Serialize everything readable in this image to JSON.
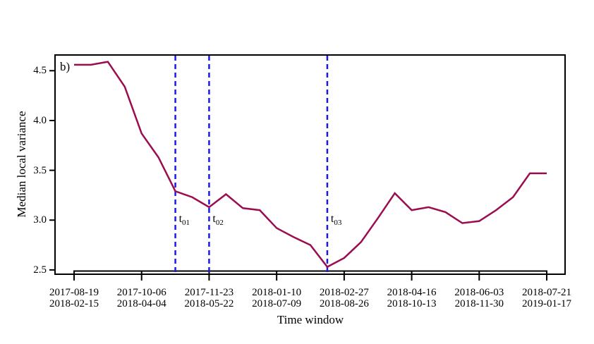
{
  "figure": {
    "panel_label": "b)",
    "background": "#ffffff",
    "text_color": "#000000"
  },
  "chart_data": {
    "type": "line",
    "title": "",
    "xlabel": "Time window",
    "ylabel": "Median local variance",
    "ylim": [
      2.43,
      4.65
    ],
    "grid": false,
    "legend": "none",
    "axis_color": "#000000",
    "y_tick_labels": [
      "4.5",
      "4.0",
      "3.5",
      "3.0",
      "2.5"
    ],
    "x_tick_point_indices": [
      0,
      4,
      8,
      12,
      16,
      20,
      24,
      28
    ],
    "x_tick_labels": [
      {
        "line1": "2017-08-19",
        "line2": "2018-02-15"
      },
      {
        "line1": "2017-10-06",
        "line2": "2018-04-04"
      },
      {
        "line1": "2017-11-23",
        "line2": "2018-05-22"
      },
      {
        "line1": "2018-01-10",
        "line2": "2018-07-09"
      },
      {
        "line1": "2018-02-27",
        "line2": "2018-08-26"
      },
      {
        "line1": "2018-04-16",
        "line2": "2018-10-13"
      },
      {
        "line1": "2018-06-03",
        "line2": "2018-11-30"
      },
      {
        "line1": "2018-07-21",
        "line2": "2019-01-17"
      }
    ],
    "series": [
      {
        "name": "median local variance",
        "color": "#9a0d4e",
        "values": [
          4.56,
          4.56,
          4.59,
          4.34,
          3.87,
          3.63,
          3.29,
          3.23,
          3.13,
          3.26,
          3.12,
          3.1,
          2.92,
          2.83,
          2.75,
          2.53,
          2.62,
          2.78,
          3.02,
          3.27,
          3.1,
          3.13,
          3.08,
          2.97,
          2.99,
          3.1,
          3.23,
          3.47,
          3.47
        ]
      }
    ],
    "markers": [
      {
        "prefix": "t",
        "subscript": "01",
        "point_index": 6,
        "color": "#1a1aee"
      },
      {
        "prefix": "t",
        "subscript": "02",
        "point_index": 8,
        "color": "#1a1aee"
      },
      {
        "prefix": "t",
        "subscript": "03",
        "point_index": 15,
        "color": "#1a1aee"
      }
    ]
  }
}
